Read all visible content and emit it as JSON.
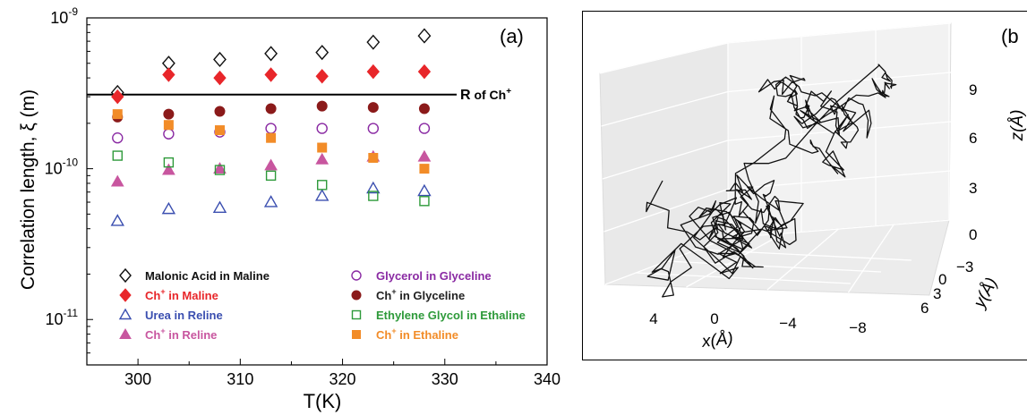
{
  "chart_data": [
    {
      "type": "scatter",
      "panel_label": "(a)",
      "xlabel": "T(K)",
      "ylabel": "Correlation length, ξ (m)",
      "xlim": [
        295,
        340
      ],
      "ylim": [
        5e-12,
        1e-09
      ],
      "yscale": "log",
      "xticks": [
        300,
        310,
        320,
        330,
        340
      ],
      "xtick_labels": [
        "300",
        "310",
        "320",
        "330",
        "340"
      ],
      "yticks": [
        1e-11,
        1e-10,
        1e-09
      ],
      "ytick_base": "10",
      "ytick_exponents": [
        "-11",
        "-10",
        "-9"
      ],
      "grid": false,
      "legend_position": "bottom",
      "reference_line": {
        "y": 3.1e-10,
        "label": "R",
        "label_mid": " of Ch",
        "label_sup": "+"
      },
      "x": [
        298,
        303,
        308,
        313,
        318,
        323,
        328
      ],
      "series": [
        {
          "name": "Malonic Acid in Maline",
          "name_main": "Malonic Acid in Maline",
          "name_sup": "",
          "name_rest": "",
          "marker": "diamond-open",
          "color": "#111111",
          "label_color": "#111111",
          "values": [
            3.2e-10,
            5e-10,
            5.3e-10,
            5.8e-10,
            5.9e-10,
            6.9e-10,
            7.6e-10
          ]
        },
        {
          "name": "Ch+ in Maline",
          "name_main": "Ch",
          "name_sup": "+",
          "name_rest": " in Maline",
          "marker": "diamond-filled",
          "color": "#e8262a",
          "label_color": "#e8262a",
          "values": [
            3e-10,
            4.2e-10,
            4e-10,
            4.2e-10,
            4.1e-10,
            4.4e-10,
            4.4e-10
          ]
        },
        {
          "name": "Urea in Reline",
          "name_main": "Urea in Reline",
          "name_sup": "",
          "name_rest": "",
          "marker": "triangle-open",
          "color": "#3b4fb0",
          "label_color": "#3b4fb0",
          "values": [
            4.5e-11,
            5.4e-11,
            5.5e-11,
            6e-11,
            6.6e-11,
            7.4e-11,
            7.1e-11
          ]
        },
        {
          "name": "Ch+ in Reline",
          "name_main": "Ch",
          "name_sup": "+",
          "name_rest": " in Reline",
          "marker": "triangle-filled",
          "color": "#c8569f",
          "label_color": "#c8569f",
          "values": [
            8.2e-11,
            9.8e-11,
            1e-10,
            1.05e-10,
            1.15e-10,
            1.2e-10,
            1.2e-10
          ]
        },
        {
          "name": "Glycerol in Glyceline",
          "name_main": "Glycerol in Glyceline",
          "name_sup": "",
          "name_rest": "",
          "marker": "circle-open",
          "color": "#8a2aa3",
          "label_color": "#8a2aa3",
          "values": [
            1.6e-10,
            1.7e-10,
            1.75e-10,
            1.85e-10,
            1.85e-10,
            1.85e-10,
            1.85e-10
          ]
        },
        {
          "name": "Ch+ in Glyceline",
          "name_main": "Ch",
          "name_sup": "+",
          "name_rest": " in Glyceline",
          "marker": "circle-filled",
          "color": "#8b1a1a",
          "label_color": "#222222",
          "values": [
            2.2e-10,
            2.3e-10,
            2.4e-10,
            2.5e-10,
            2.6e-10,
            2.55e-10,
            2.5e-10
          ]
        },
        {
          "name": "Ethylene Glycol in Ethaline",
          "name_main": "Ethylene Glycol in Ethaline",
          "name_sup": "",
          "name_rest": "",
          "marker": "square-open",
          "color": "#2e9a3a",
          "label_color": "#2e9a3a",
          "values": [
            1.22e-10,
            1.1e-10,
            9.8e-11,
            9e-11,
            7.8e-11,
            6.6e-11,
            6.1e-11
          ]
        },
        {
          "name": "Ch+ in Ethaline",
          "name_main": "Ch",
          "name_sup": "+",
          "name_rest": " in Ethaline",
          "marker": "square-filled",
          "color": "#f28c28",
          "label_color": "#f28c28",
          "values": [
            2.3e-10,
            1.95e-10,
            1.8e-10,
            1.6e-10,
            1.38e-10,
            1.18e-10,
            1e-10
          ]
        }
      ]
    },
    {
      "type": "3d-trajectory",
      "panel_label": "(b",
      "xlabel": "x(Å)",
      "ylabel": "y(Å)",
      "zlabel": "z(Å)",
      "xtick_labels": [
        "4",
        "0",
        "−4",
        "−8"
      ],
      "ytick_labels": [
        "−3",
        "0",
        "3",
        "6"
      ],
      "ztick_labels": [
        "9",
        "6",
        "3",
        "0"
      ],
      "grid": true,
      "line_color": "#111111"
    }
  ]
}
